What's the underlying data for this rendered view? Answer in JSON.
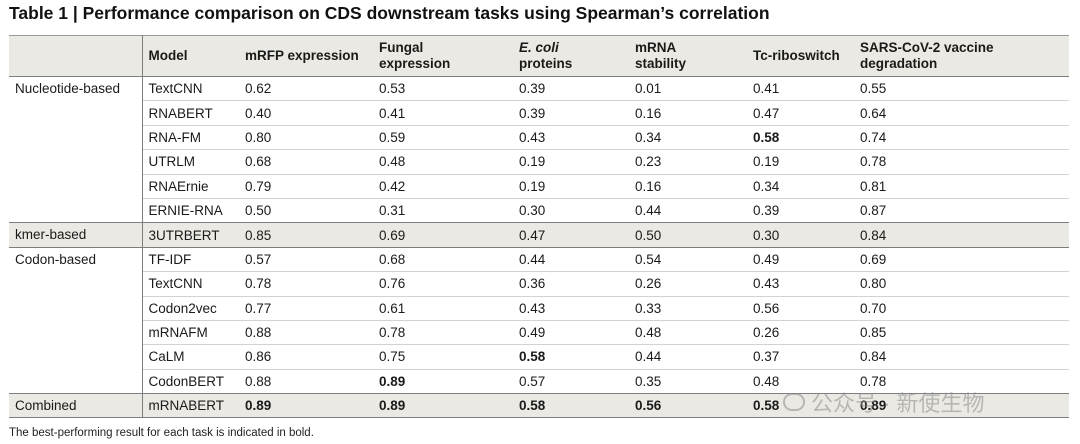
{
  "title": "Table 1 | Performance comparison on CDS downstream tasks using Spearman’s correlation",
  "headers": [
    "",
    "Model",
    "mRFP expression",
    "Fungal expression",
    "E. coli proteins",
    "mRNA stability",
    "Tc-riboswitch",
    "SARS-CoV-2 vaccine degradation"
  ],
  "groups": [
    {
      "name": "Nucleotide-based",
      "shaded": false,
      "rows": [
        {
          "model": "TextCNN",
          "values": [
            "0.62",
            "0.53",
            "0.39",
            "0.01",
            "0.41",
            "0.55"
          ],
          "bold": [
            false,
            false,
            false,
            false,
            false,
            false
          ]
        },
        {
          "model": "RNABERT",
          "values": [
            "0.40",
            "0.41",
            "0.39",
            "0.16",
            "0.47",
            "0.64"
          ],
          "bold": [
            false,
            false,
            false,
            false,
            false,
            false
          ]
        },
        {
          "model": "RNA-FM",
          "values": [
            "0.80",
            "0.59",
            "0.43",
            "0.34",
            "0.58",
            "0.74"
          ],
          "bold": [
            false,
            false,
            false,
            false,
            true,
            false
          ]
        },
        {
          "model": "UTRLM",
          "values": [
            "0.68",
            "0.48",
            "0.19",
            "0.23",
            "0.19",
            "0.78"
          ],
          "bold": [
            false,
            false,
            false,
            false,
            false,
            false
          ]
        },
        {
          "model": "RNAErnie",
          "values": [
            "0.79",
            "0.42",
            "0.19",
            "0.16",
            "0.34",
            "0.81"
          ],
          "bold": [
            false,
            false,
            false,
            false,
            false,
            false
          ]
        },
        {
          "model": "ERNIE-RNA",
          "values": [
            "0.50",
            "0.31",
            "0.30",
            "0.44",
            "0.39",
            "0.87"
          ],
          "bold": [
            false,
            false,
            false,
            false,
            false,
            false
          ]
        }
      ]
    },
    {
      "name": "kmer-based",
      "shaded": true,
      "rows": [
        {
          "model": "3UTRBERT",
          "values": [
            "0.85",
            "0.69",
            "0.47",
            "0.50",
            "0.30",
            "0.84"
          ],
          "bold": [
            false,
            false,
            false,
            false,
            false,
            false
          ]
        }
      ]
    },
    {
      "name": "Codon-based",
      "shaded": false,
      "rows": [
        {
          "model": "TF-IDF",
          "values": [
            "0.57",
            "0.68",
            "0.44",
            "0.54",
            "0.49",
            "0.69"
          ],
          "bold": [
            false,
            false,
            false,
            false,
            false,
            false
          ]
        },
        {
          "model": "TextCNN",
          "values": [
            "0.78",
            "0.76",
            "0.36",
            "0.26",
            "0.43",
            "0.80"
          ],
          "bold": [
            false,
            false,
            false,
            false,
            false,
            false
          ]
        },
        {
          "model": "Codon2vec",
          "values": [
            "0.77",
            "0.61",
            "0.43",
            "0.33",
            "0.56",
            "0.70"
          ],
          "bold": [
            false,
            false,
            false,
            false,
            false,
            false
          ]
        },
        {
          "model": "mRNAFM",
          "values": [
            "0.88",
            "0.78",
            "0.49",
            "0.48",
            "0.26",
            "0.85"
          ],
          "bold": [
            false,
            false,
            false,
            false,
            false,
            false
          ]
        },
        {
          "model": "CaLM",
          "values": [
            "0.86",
            "0.75",
            "0.58",
            "0.44",
            "0.37",
            "0.84"
          ],
          "bold": [
            false,
            false,
            true,
            false,
            false,
            false
          ]
        },
        {
          "model": "CodonBERT",
          "values": [
            "0.88",
            "0.89",
            "0.57",
            "0.35",
            "0.48",
            "0.78"
          ],
          "bold": [
            false,
            true,
            false,
            false,
            false,
            false
          ]
        }
      ]
    },
    {
      "name": "Combined",
      "shaded": true,
      "rows": [
        {
          "model": "mRNABERT",
          "values": [
            "0.89",
            "0.89",
            "0.58",
            "0.56",
            "0.58",
            "0.89"
          ],
          "bold": [
            true,
            true,
            true,
            true,
            true,
            true
          ]
        }
      ]
    }
  ],
  "footnote": "The best-performing result for each task is indicated in bold.",
  "watermark": "公众号 · 新使生物"
}
